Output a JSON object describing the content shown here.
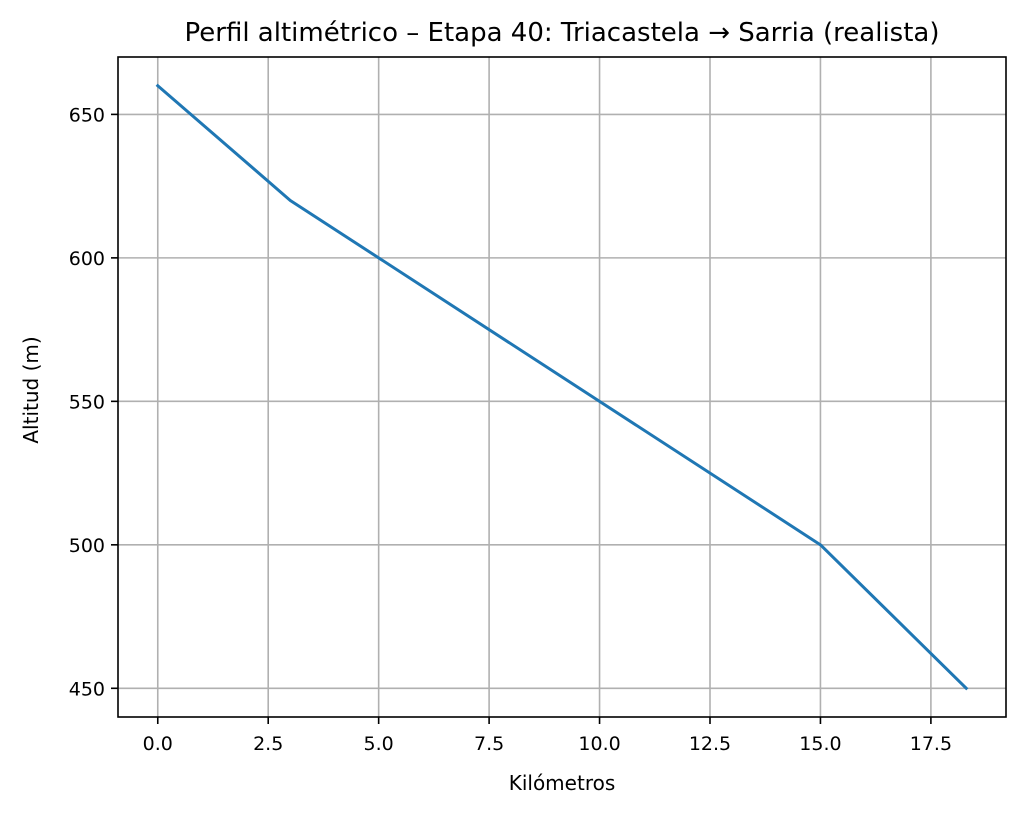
{
  "chart_data": {
    "type": "line",
    "title": "Perfil altimétrico – Etapa 40: Triacastela → Sarria (realista)",
    "xlabel": "Kilómetros",
    "ylabel": "Altitud (m)",
    "xlim": [
      -0.9,
      19.2
    ],
    "ylim": [
      440,
      670
    ],
    "xticks": [
      0.0,
      2.5,
      5.0,
      7.5,
      10.0,
      12.5,
      15.0,
      17.5
    ],
    "xtick_labels": [
      "0.0",
      "2.5",
      "5.0",
      "7.5",
      "10.0",
      "12.5",
      "15.0",
      "17.5"
    ],
    "yticks": [
      450,
      500,
      550,
      600,
      650
    ],
    "ytick_labels": [
      "450",
      "500",
      "550",
      "600",
      "650"
    ],
    "grid": true,
    "series": [
      {
        "x": [
          0,
          3,
          5,
          10,
          15,
          18.3
        ],
        "y": [
          660,
          620,
          600,
          550,
          500,
          450
        ],
        "color": "#1f77b4"
      }
    ]
  }
}
